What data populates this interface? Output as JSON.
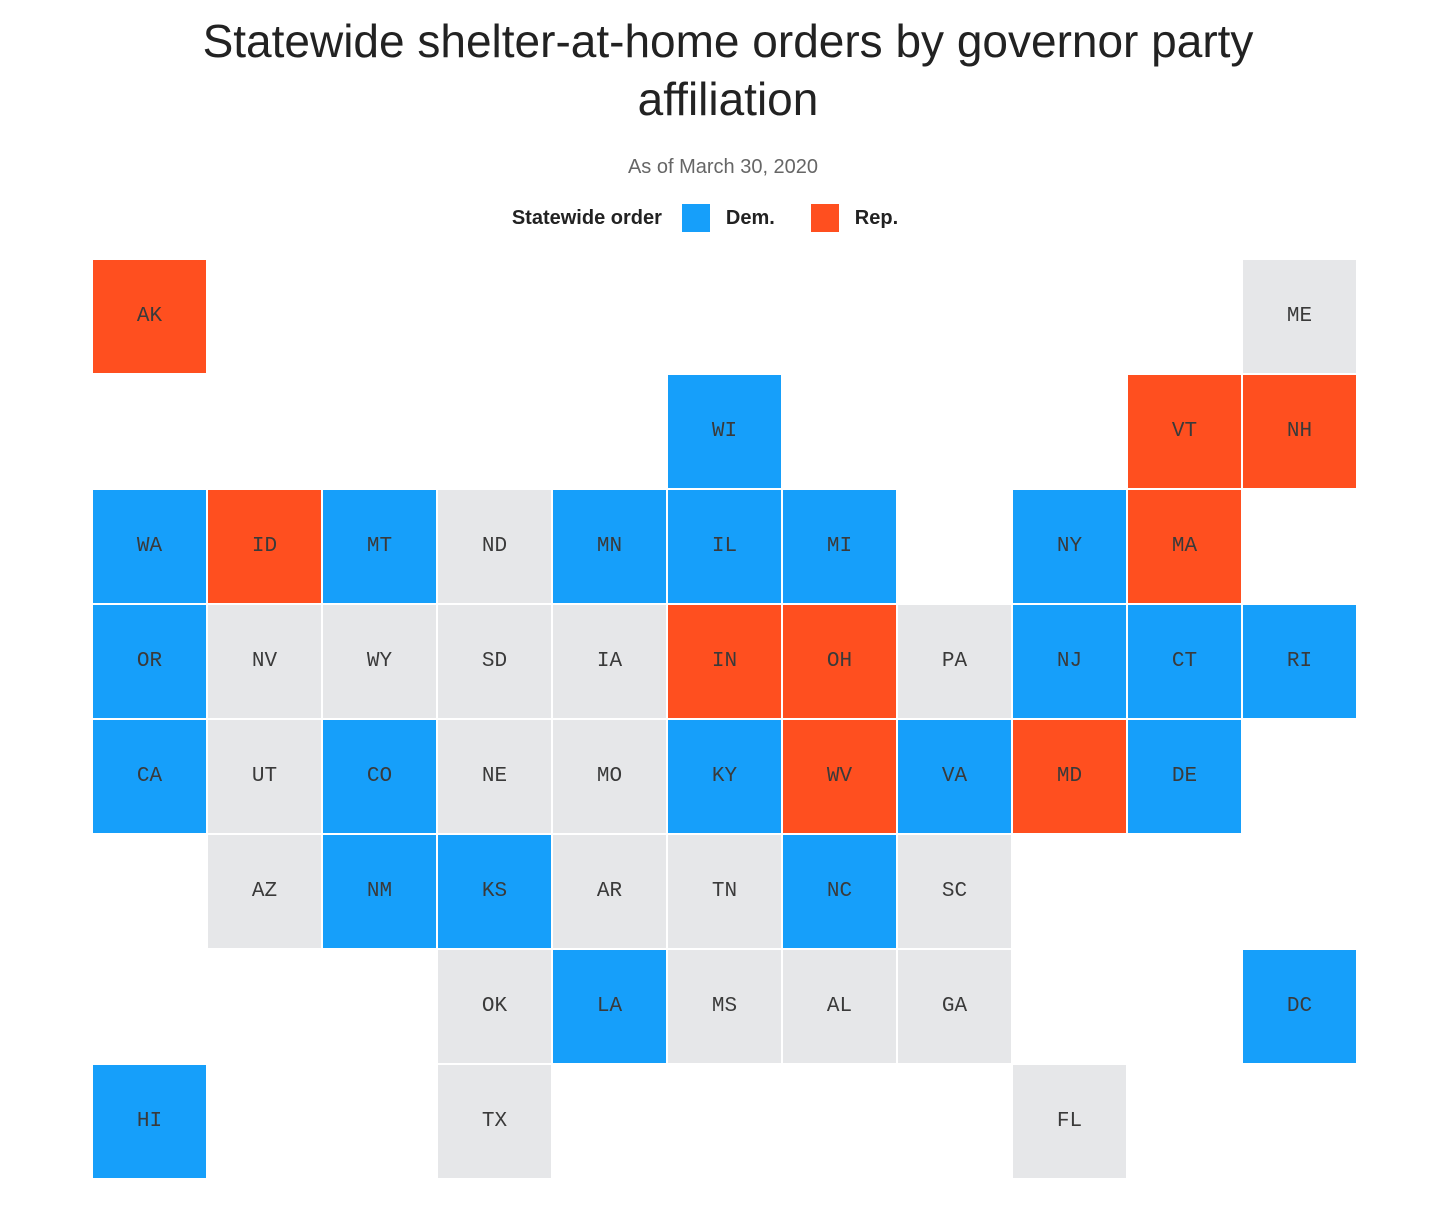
{
  "title": "Statewide shelter-at-home orders by governor party affiliation",
  "subtitle": "As of March 30, 2020",
  "legend": {
    "title": "Statewide order",
    "items": [
      {
        "label": "Dem.",
        "color": "#169ffa"
      },
      {
        "label": "Rep.",
        "color": "#ff4f1f"
      }
    ]
  },
  "colors": {
    "dem": "#169ffa",
    "rep": "#ff4f1f",
    "none": "#e6e7e9"
  },
  "tiles": [
    {
      "state": "AK",
      "row": 0,
      "col": 0,
      "status": "rep"
    },
    {
      "state": "ME",
      "row": 0,
      "col": 10,
      "status": "none"
    },
    {
      "state": "WI",
      "row": 1,
      "col": 5,
      "status": "dem"
    },
    {
      "state": "VT",
      "row": 1,
      "col": 9,
      "status": "rep"
    },
    {
      "state": "NH",
      "row": 1,
      "col": 10,
      "status": "rep"
    },
    {
      "state": "WA",
      "row": 2,
      "col": 0,
      "status": "dem"
    },
    {
      "state": "ID",
      "row": 2,
      "col": 1,
      "status": "rep"
    },
    {
      "state": "MT",
      "row": 2,
      "col": 2,
      "status": "dem"
    },
    {
      "state": "ND",
      "row": 2,
      "col": 3,
      "status": "none"
    },
    {
      "state": "MN",
      "row": 2,
      "col": 4,
      "status": "dem"
    },
    {
      "state": "IL",
      "row": 2,
      "col": 5,
      "status": "dem"
    },
    {
      "state": "MI",
      "row": 2,
      "col": 6,
      "status": "dem"
    },
    {
      "state": "NY",
      "row": 2,
      "col": 8,
      "status": "dem"
    },
    {
      "state": "MA",
      "row": 2,
      "col": 9,
      "status": "rep"
    },
    {
      "state": "OR",
      "row": 3,
      "col": 0,
      "status": "dem"
    },
    {
      "state": "NV",
      "row": 3,
      "col": 1,
      "status": "none"
    },
    {
      "state": "WY",
      "row": 3,
      "col": 2,
      "status": "none"
    },
    {
      "state": "SD",
      "row": 3,
      "col": 3,
      "status": "none"
    },
    {
      "state": "IA",
      "row": 3,
      "col": 4,
      "status": "none"
    },
    {
      "state": "IN",
      "row": 3,
      "col": 5,
      "status": "rep"
    },
    {
      "state": "OH",
      "row": 3,
      "col": 6,
      "status": "rep"
    },
    {
      "state": "PA",
      "row": 3,
      "col": 7,
      "status": "none"
    },
    {
      "state": "NJ",
      "row": 3,
      "col": 8,
      "status": "dem"
    },
    {
      "state": "CT",
      "row": 3,
      "col": 9,
      "status": "dem"
    },
    {
      "state": "RI",
      "row": 3,
      "col": 10,
      "status": "dem"
    },
    {
      "state": "CA",
      "row": 4,
      "col": 0,
      "status": "dem"
    },
    {
      "state": "UT",
      "row": 4,
      "col": 1,
      "status": "none"
    },
    {
      "state": "CO",
      "row": 4,
      "col": 2,
      "status": "dem"
    },
    {
      "state": "NE",
      "row": 4,
      "col": 3,
      "status": "none"
    },
    {
      "state": "MO",
      "row": 4,
      "col": 4,
      "status": "none"
    },
    {
      "state": "KY",
      "row": 4,
      "col": 5,
      "status": "dem"
    },
    {
      "state": "WV",
      "row": 4,
      "col": 6,
      "status": "rep"
    },
    {
      "state": "VA",
      "row": 4,
      "col": 7,
      "status": "dem"
    },
    {
      "state": "MD",
      "row": 4,
      "col": 8,
      "status": "rep"
    },
    {
      "state": "DE",
      "row": 4,
      "col": 9,
      "status": "dem"
    },
    {
      "state": "AZ",
      "row": 5,
      "col": 1,
      "status": "none"
    },
    {
      "state": "NM",
      "row": 5,
      "col": 2,
      "status": "dem"
    },
    {
      "state": "KS",
      "row": 5,
      "col": 3,
      "status": "dem"
    },
    {
      "state": "AR",
      "row": 5,
      "col": 4,
      "status": "none"
    },
    {
      "state": "TN",
      "row": 5,
      "col": 5,
      "status": "none"
    },
    {
      "state": "NC",
      "row": 5,
      "col": 6,
      "status": "dem"
    },
    {
      "state": "SC",
      "row": 5,
      "col": 7,
      "status": "none"
    },
    {
      "state": "OK",
      "row": 6,
      "col": 3,
      "status": "none"
    },
    {
      "state": "LA",
      "row": 6,
      "col": 4,
      "status": "dem"
    },
    {
      "state": "MS",
      "row": 6,
      "col": 5,
      "status": "none"
    },
    {
      "state": "AL",
      "row": 6,
      "col": 6,
      "status": "none"
    },
    {
      "state": "GA",
      "row": 6,
      "col": 7,
      "status": "none"
    },
    {
      "state": "DC",
      "row": 6,
      "col": 10,
      "status": "dem"
    },
    {
      "state": "HI",
      "row": 7,
      "col": 0,
      "status": "dem"
    },
    {
      "state": "TX",
      "row": 7,
      "col": 3,
      "status": "none"
    },
    {
      "state": "FL",
      "row": 7,
      "col": 8,
      "status": "none"
    }
  ]
}
